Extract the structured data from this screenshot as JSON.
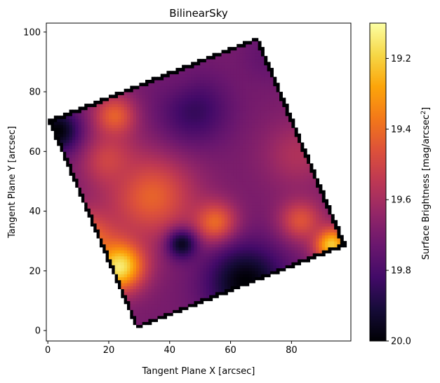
{
  "chart_data": {
    "type": "heatmap",
    "title": "BilinearSky",
    "xlabel": "Tangent Plane X [arcsec]",
    "ylabel": "Tangent Plane Y [arcsec]",
    "xlim": [
      -0.5,
      99.5
    ],
    "ylim": [
      -3.5,
      103
    ],
    "x_ticks": [
      0,
      20,
      40,
      60,
      80
    ],
    "y_ticks": [
      0,
      20,
      40,
      60,
      80,
      100
    ],
    "colormap": "inferno",
    "colorbar": {
      "label_main": "Surface Brightness [mag/arcsec",
      "label_sup": "2",
      "label_close": "]",
      "vmin": 19.1,
      "vmax": 20.0,
      "ticks": [
        "19.2",
        "19.4",
        "19.6",
        "19.8",
        "20.0"
      ],
      "tick_values": [
        19.2,
        19.4,
        19.6,
        19.8,
        20.0
      ],
      "reversed": true
    },
    "grid": false,
    "footprint_corners": [
      [
        29,
        0.5
      ],
      [
        98,
        28.5
      ],
      [
        69,
        98.5
      ],
      [
        0,
        70.5
      ]
    ],
    "field": {
      "base": 19.7,
      "features": [
        {
          "x": 23,
          "y": 22,
          "value": 19.1,
          "sigma": 6
        },
        {
          "x": 12,
          "y": 30,
          "value": 19.35,
          "sigma": 7
        },
        {
          "x": 34,
          "y": 45,
          "value": 19.42,
          "sigma": 10
        },
        {
          "x": 55,
          "y": 36,
          "value": 19.38,
          "sigma": 5
        },
        {
          "x": 20,
          "y": 57,
          "value": 19.5,
          "sigma": 6
        },
        {
          "x": 22,
          "y": 72,
          "value": 19.42,
          "sigma": 5
        },
        {
          "x": 93,
          "y": 29,
          "value": 19.2,
          "sigma": 4
        },
        {
          "x": 83,
          "y": 37,
          "value": 19.45,
          "sigma": 5
        },
        {
          "x": 65,
          "y": 16,
          "value": 20.0,
          "sigma": 9
        },
        {
          "x": 44,
          "y": 29,
          "value": 19.95,
          "sigma": 3.5
        },
        {
          "x": 3,
          "y": 67,
          "value": 20.0,
          "sigma": 5
        },
        {
          "x": 48,
          "y": 74,
          "value": 19.85,
          "sigma": 8
        },
        {
          "x": 72,
          "y": 92,
          "value": 19.75,
          "sigma": 6
        },
        {
          "x": 82,
          "y": 59,
          "value": 19.58,
          "sigma": 8
        },
        {
          "x": 40,
          "y": 90,
          "value": 19.72,
          "sigma": 7
        }
      ]
    }
  }
}
